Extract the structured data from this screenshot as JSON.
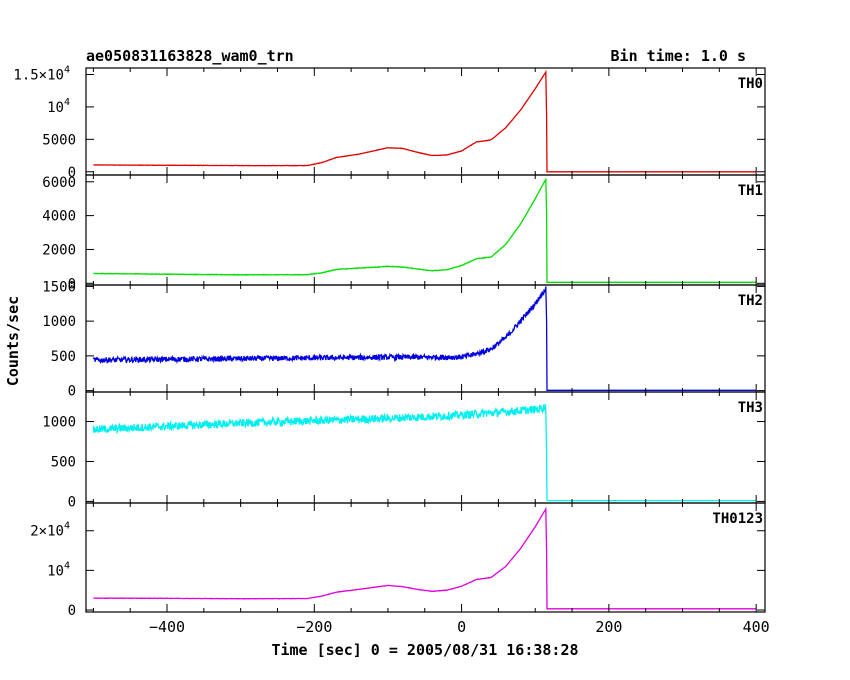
{
  "chart_data": {
    "type": "line",
    "title": "ae050831163828_wam0_trn",
    "bin_time_label": "Bin time: 1.0 s",
    "xlabel": "Time [sec] 0 = 2005/08/31 16:38:28",
    "ylabel": "Counts/sec",
    "xlim": [
      -510,
      412
    ],
    "x_ticks": [
      "−400",
      "−200",
      "0",
      "200",
      "400"
    ],
    "x_tick_values": [
      -400,
      -200,
      0,
      200,
      400
    ],
    "panels": [
      {
        "name": "TH0",
        "color": "#e00000",
        "ylim": [
          -500,
          16000
        ],
        "noise": 25,
        "y_ticks": [
          {
            "value": 0,
            "label": "0"
          },
          {
            "value": 5000,
            "label": "5000"
          },
          {
            "value": 10000,
            "label": "10",
            "exp": "4"
          },
          {
            "value": 15000,
            "label": "1.5×10",
            "exp": "4"
          }
        ],
        "points": [
          [
            -500,
            1050
          ],
          [
            -400,
            1000
          ],
          [
            -300,
            950
          ],
          [
            -210,
            950
          ],
          [
            -190,
            1400
          ],
          [
            -170,
            2200
          ],
          [
            -140,
            2700
          ],
          [
            -100,
            3700
          ],
          [
            -80,
            3600
          ],
          [
            -60,
            3000
          ],
          [
            -40,
            2500
          ],
          [
            -20,
            2600
          ],
          [
            0,
            3200
          ],
          [
            20,
            4600
          ],
          [
            40,
            4900
          ],
          [
            60,
            6800
          ],
          [
            80,
            9500
          ],
          [
            100,
            12800
          ],
          [
            115,
            15500
          ],
          [
            115.5,
            8500
          ],
          [
            116,
            0
          ],
          [
            400,
            0
          ]
        ]
      },
      {
        "name": "TH1",
        "color": "#00e000",
        "ylim": [
          -100,
          6400
        ],
        "noise": 15,
        "y_ticks": [
          {
            "value": 0,
            "label": "0"
          },
          {
            "value": 2000,
            "label": "2000"
          },
          {
            "value": 4000,
            "label": "4000"
          },
          {
            "value": 6000,
            "label": "6000"
          }
        ],
        "points": [
          [
            -500,
            580
          ],
          [
            -400,
            540
          ],
          [
            -300,
            500
          ],
          [
            -210,
            510
          ],
          [
            -190,
            620
          ],
          [
            -170,
            820
          ],
          [
            -140,
            900
          ],
          [
            -100,
            1000
          ],
          [
            -80,
            960
          ],
          [
            -60,
            850
          ],
          [
            -40,
            740
          ],
          [
            -20,
            800
          ],
          [
            0,
            1050
          ],
          [
            20,
            1450
          ],
          [
            40,
            1550
          ],
          [
            60,
            2300
          ],
          [
            80,
            3500
          ],
          [
            100,
            5000
          ],
          [
            115,
            6200
          ],
          [
            115.5,
            4200
          ],
          [
            116,
            60
          ],
          [
            400,
            60
          ]
        ]
      },
      {
        "name": "TH2",
        "color": "#0000e0",
        "ylim": [
          -20,
          1520
        ],
        "noise": 38,
        "y_ticks": [
          {
            "value": 0,
            "label": "0"
          },
          {
            "value": 500,
            "label": "500"
          },
          {
            "value": 1000,
            "label": "1000"
          },
          {
            "value": 1500,
            "label": "1500"
          }
        ],
        "points": [
          [
            -500,
            440
          ],
          [
            -300,
            460
          ],
          [
            -100,
            480
          ],
          [
            0,
            480
          ],
          [
            20,
            530
          ],
          [
            40,
            600
          ],
          [
            60,
            760
          ],
          [
            80,
            1000
          ],
          [
            100,
            1250
          ],
          [
            115,
            1480
          ],
          [
            115.5,
            1000
          ],
          [
            116,
            5
          ],
          [
            400,
            5
          ]
        ]
      },
      {
        "name": "TH3",
        "color": "#00f0f0",
        "ylim": [
          -20,
          1370
        ],
        "noise": 50,
        "y_ticks": [
          {
            "value": 0,
            "label": "0"
          },
          {
            "value": 500,
            "label": "500"
          },
          {
            "value": 1000,
            "label": "1000"
          }
        ],
        "points": [
          [
            -500,
            900
          ],
          [
            -400,
            940
          ],
          [
            -300,
            980
          ],
          [
            -200,
            1010
          ],
          [
            -100,
            1040
          ],
          [
            0,
            1080
          ],
          [
            100,
            1150
          ],
          [
            115,
            1180
          ],
          [
            115.5,
            600
          ],
          [
            116,
            10
          ],
          [
            400,
            10
          ]
        ]
      },
      {
        "name": "TH0123",
        "color": "#e000e0",
        "ylim": [
          -500,
          27000
        ],
        "noise": 40,
        "y_ticks": [
          {
            "value": 0,
            "label": "0"
          },
          {
            "value": 10000,
            "label": "10",
            "exp": "4"
          },
          {
            "value": 20000,
            "label": "2×10",
            "exp": "4"
          }
        ],
        "points": [
          [
            -500,
            3000
          ],
          [
            -400,
            2950
          ],
          [
            -300,
            2850
          ],
          [
            -210,
            2900
          ],
          [
            -190,
            3500
          ],
          [
            -170,
            4500
          ],
          [
            -140,
            5200
          ],
          [
            -100,
            6200
          ],
          [
            -80,
            5900
          ],
          [
            -60,
            5200
          ],
          [
            -40,
            4700
          ],
          [
            -20,
            5000
          ],
          [
            0,
            6000
          ],
          [
            20,
            7700
          ],
          [
            40,
            8200
          ],
          [
            60,
            11000
          ],
          [
            80,
            15500
          ],
          [
            100,
            21000
          ],
          [
            115,
            25700
          ],
          [
            115.5,
            15000
          ],
          [
            116,
            300
          ],
          [
            400,
            300
          ]
        ]
      }
    ]
  }
}
